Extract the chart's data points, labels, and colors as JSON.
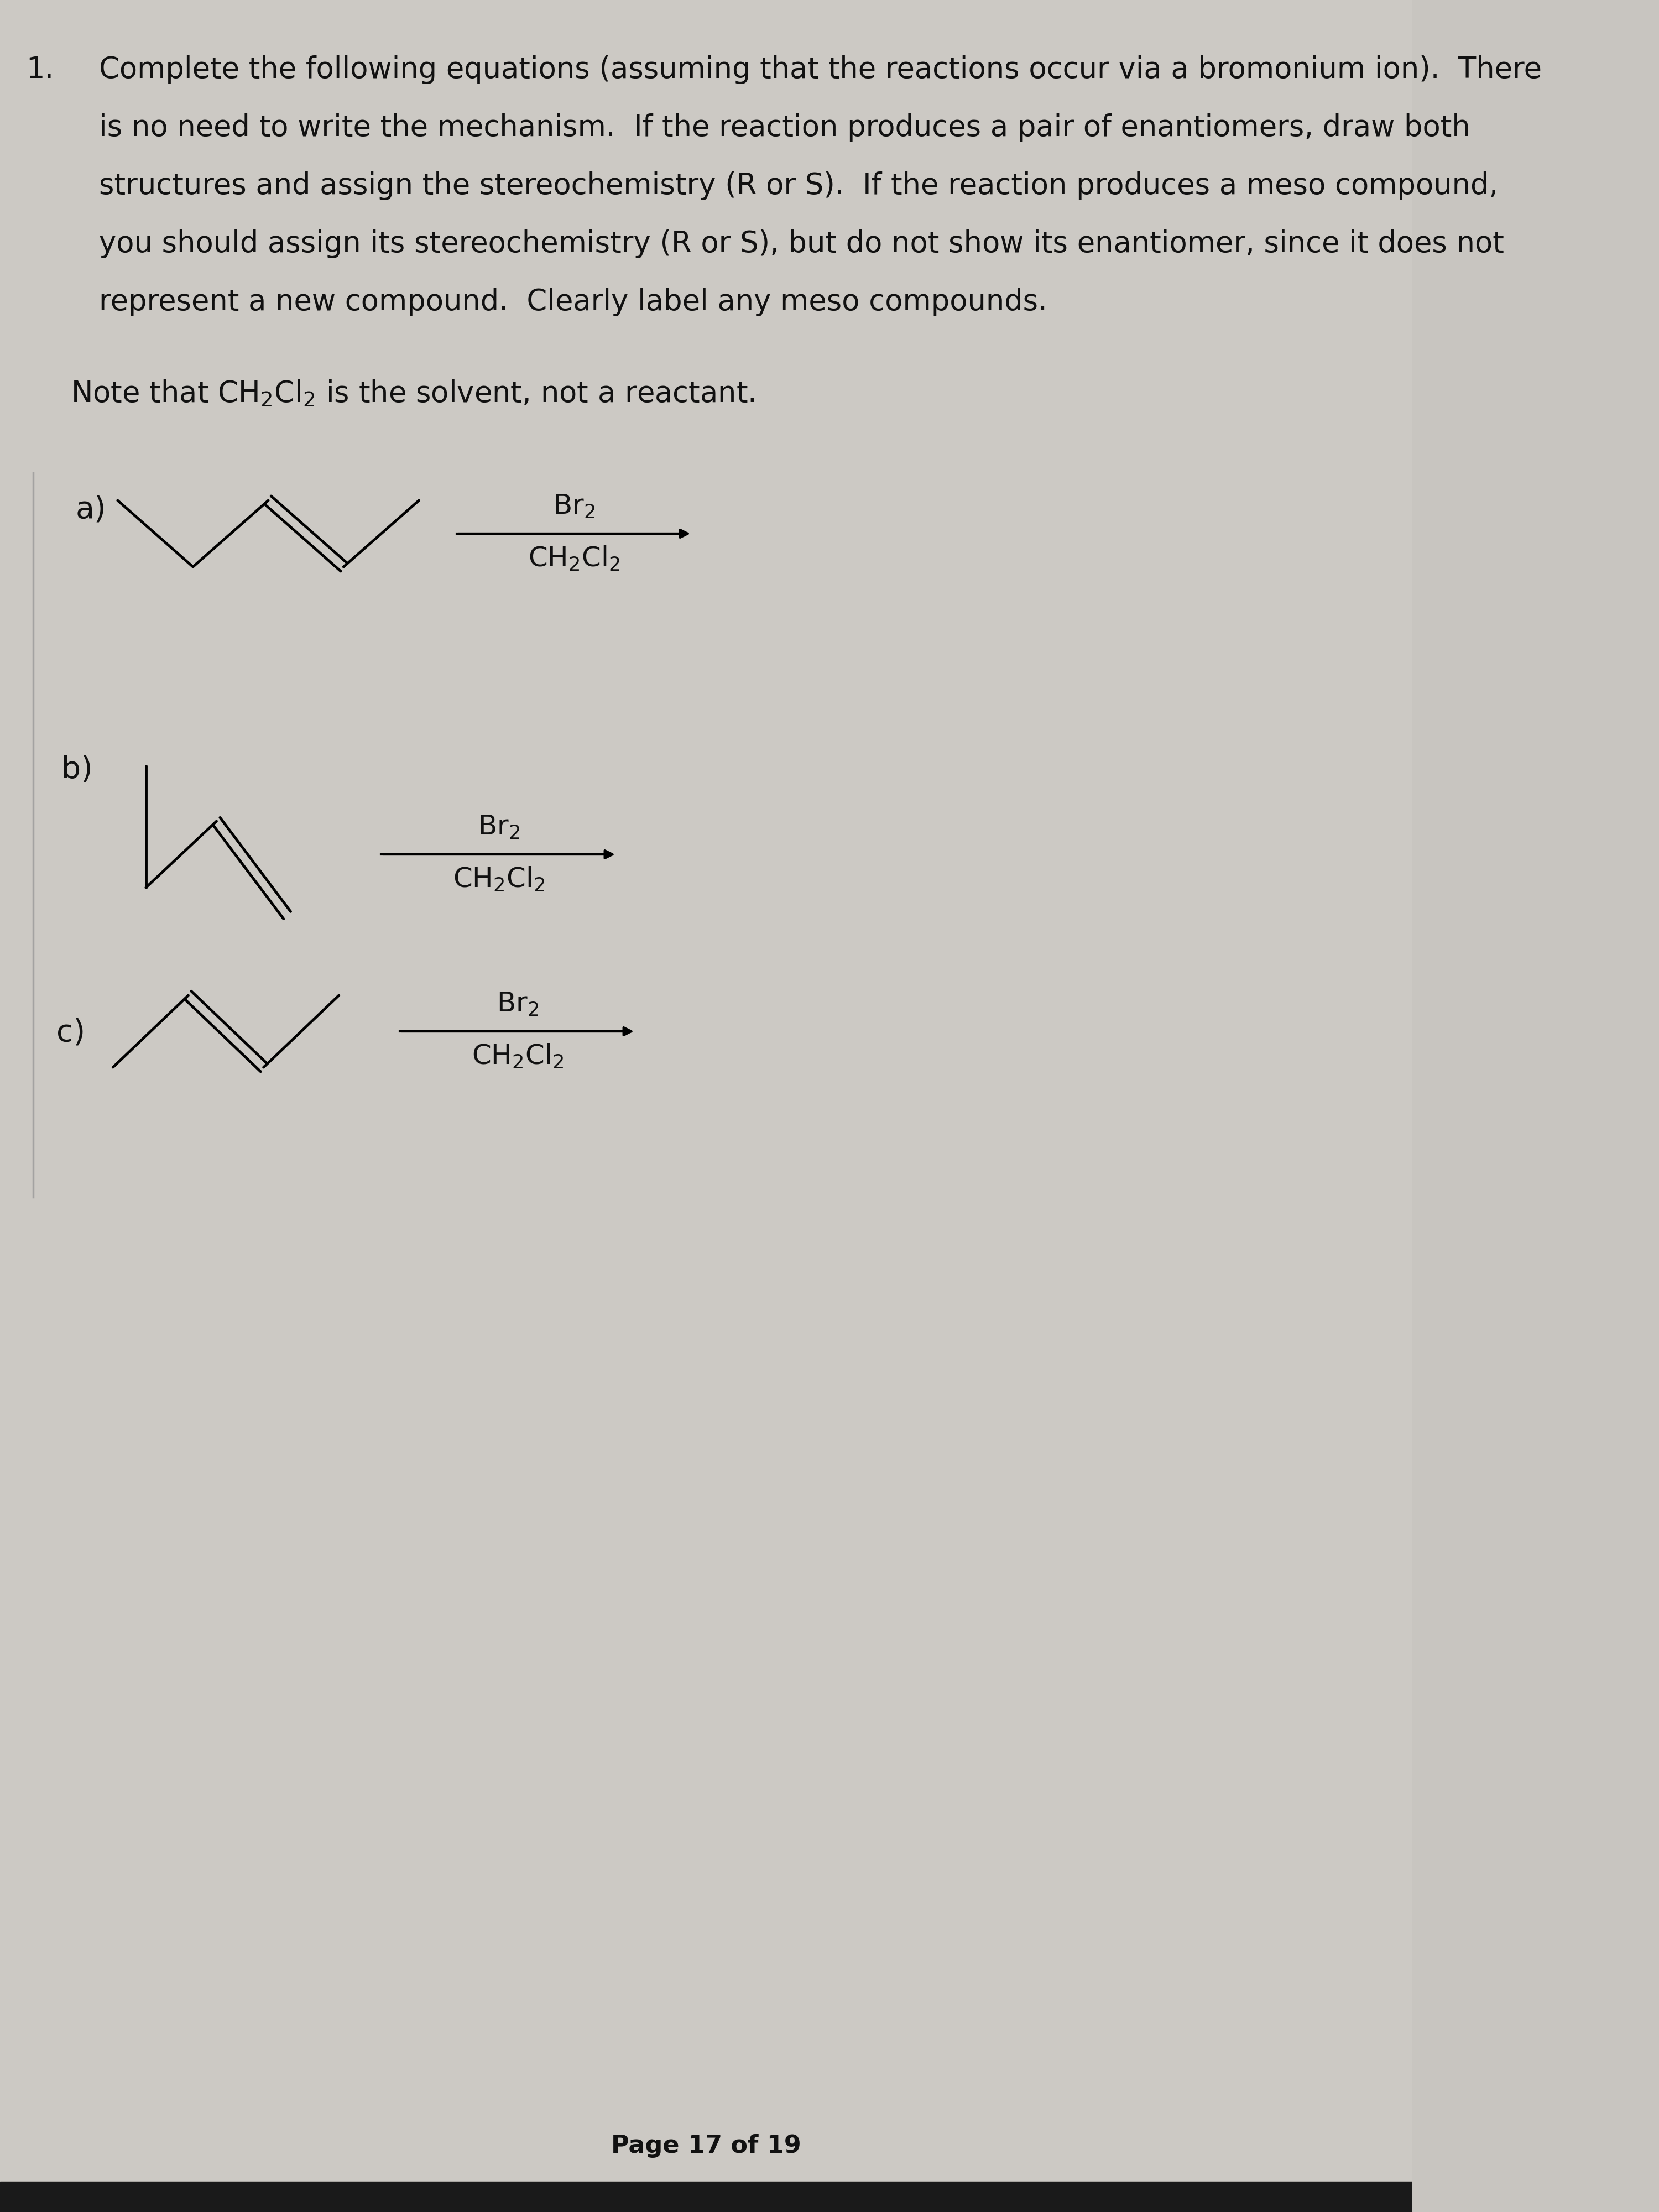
{
  "bg_color": "#c8c5c0",
  "paper_color_top": "#d4d1cc",
  "paper_color_bottom": "#c0bdb8",
  "text_color": "#111111",
  "title_number": "1.",
  "paragraph_lines": [
    "Complete the following equations (assuming that the reactions occur via a bromonium ion).  There",
    "is no need to write the mechanism.  If the reaction produces a pair of enantiomers, draw both",
    "structures and assign the stereochemistry (R or S).  If the reaction produces a meso compound,",
    "you should assign its stereochemistry (R or S), but do not show its enantiomer, since it does not",
    "represent a new compound.  Clearly label any meso compounds."
  ],
  "note_line": "Note that CH$_2$Cl$_2$ is the solvent, not a reactant.",
  "page_label": "Page 17 of 19",
  "font_size_title": 38,
  "font_size_body": 38,
  "font_size_note": 38,
  "font_size_label": 40,
  "font_size_reagent": 36,
  "font_size_page": 32,
  "reactions": [
    {
      "label": "a)",
      "mol": "a",
      "arr_label_top": "Br$_2$",
      "arr_label_bot": "CH$_2$Cl$_2$"
    },
    {
      "label": "b)",
      "mol": "b",
      "arr_label_top": "Br$_2$",
      "arr_label_bot": "CH$_2$Cl$_2$"
    },
    {
      "label": "c)",
      "mol": "c",
      "arr_label_top": "Br$_2$",
      "arr_label_bot": "CH$_2$Cl$_2$"
    }
  ]
}
